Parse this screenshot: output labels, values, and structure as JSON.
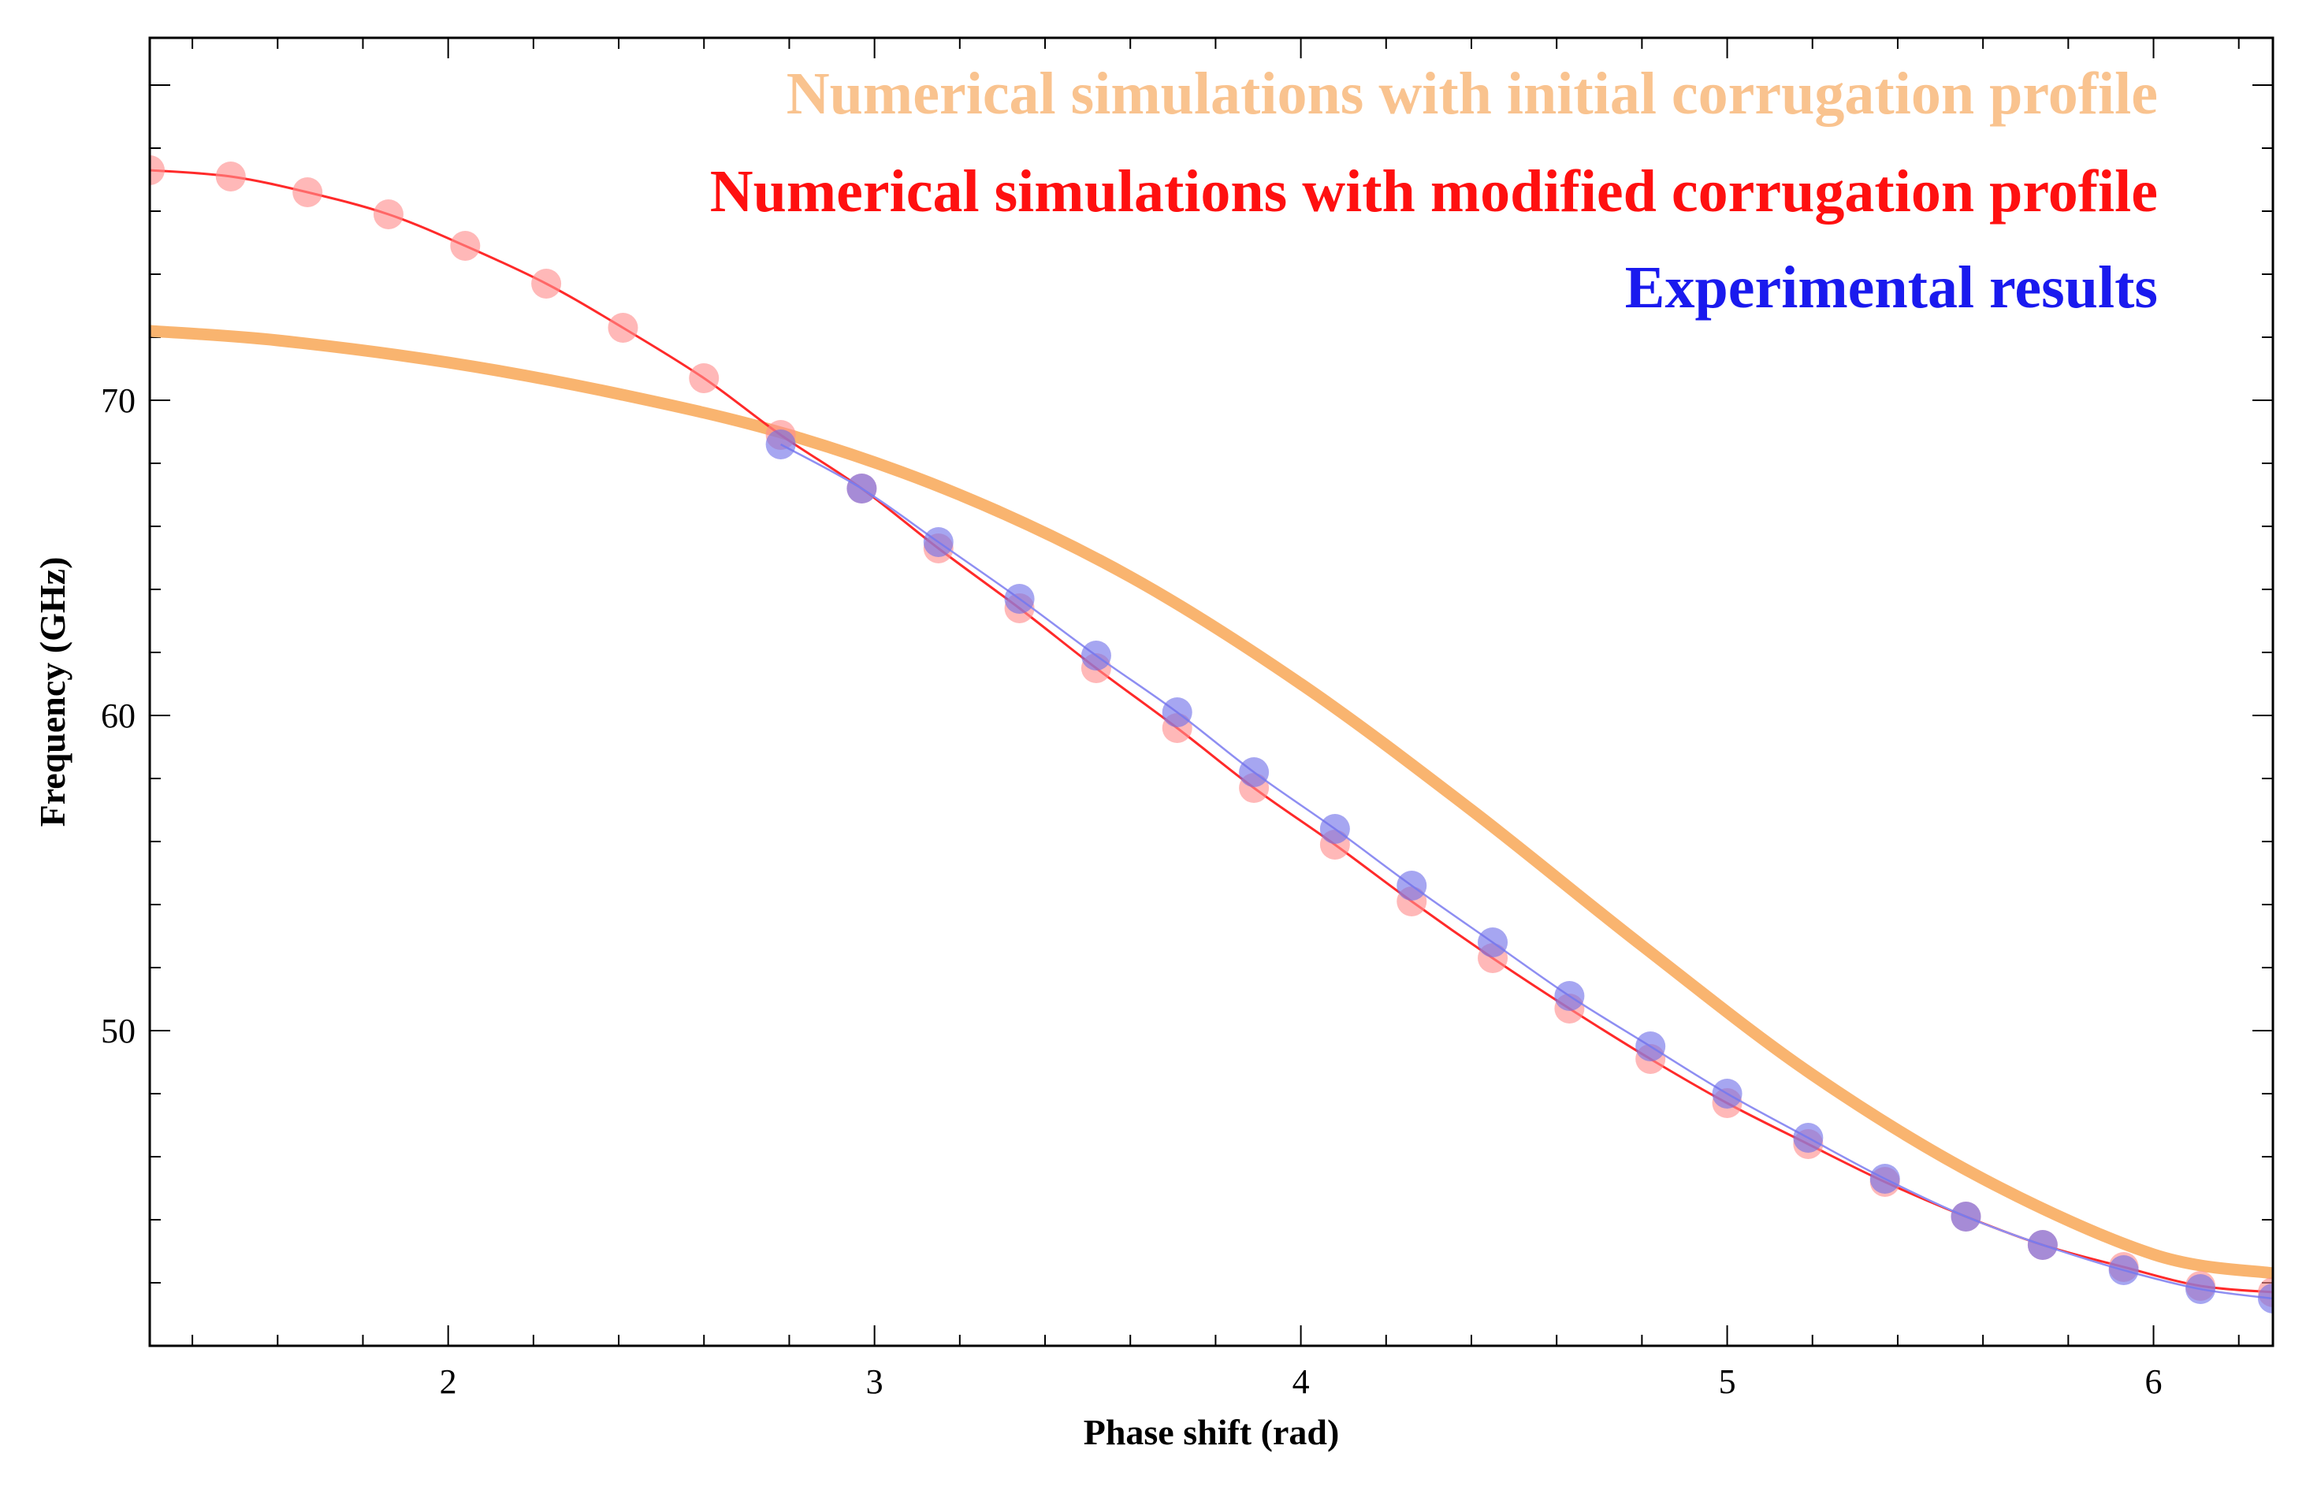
{
  "chart_data": {
    "type": "line",
    "title": "",
    "xlabel": "Phase shift (rad)",
    "ylabel": "Frequency (GHz)",
    "xlim": [
      1.3,
      6.28
    ],
    "ylim": [
      40,
      81.5
    ],
    "x_ticks": [
      2,
      3,
      4,
      5,
      6
    ],
    "x_tick_labels": [
      "2",
      "3",
      "4",
      "5",
      "6"
    ],
    "y_ticks": [
      50,
      60,
      70
    ],
    "y_tick_labels": [
      "50",
      "60",
      "70"
    ],
    "grid": false,
    "legend_position": "top-right",
    "series": [
      {
        "name": "Numerical simulations with initial corrugation profile",
        "color": "#f9b46f",
        "style": "thick-line",
        "x": [
          1.3,
          1.6,
          2.0,
          2.4,
          2.8,
          3.2,
          3.6,
          4.0,
          4.4,
          4.8,
          5.2,
          5.6,
          6.0,
          6.28
        ],
        "y": [
          72.2,
          71.9,
          71.2,
          70.2,
          68.9,
          67.0,
          64.4,
          61.0,
          57.0,
          52.7,
          48.6,
          45.3,
          42.9,
          42.3
        ]
      },
      {
        "name": "Numerical simulations with modified corrugation profile",
        "color": "#ff2a2a",
        "marker_color": "#ff8c8c",
        "style": "line-with-markers",
        "x": [
          1.3,
          1.49,
          1.67,
          1.86,
          2.04,
          2.23,
          2.41,
          2.6,
          2.78,
          2.97,
          3.15,
          3.34,
          3.52,
          3.71,
          3.89,
          4.08,
          4.26,
          4.45,
          4.63,
          4.82,
          5.0,
          5.19,
          5.37,
          5.56,
          5.74,
          5.93,
          6.11,
          6.28
        ],
        "y": [
          77.3,
          77.1,
          76.6,
          75.9,
          74.9,
          73.7,
          72.3,
          70.7,
          68.9,
          67.2,
          65.3,
          63.4,
          61.5,
          59.6,
          57.7,
          55.9,
          54.1,
          52.3,
          50.7,
          49.1,
          47.7,
          46.4,
          45.2,
          44.1,
          43.2,
          42.5,
          41.9,
          41.7
        ]
      },
      {
        "name": "Experimental results",
        "color": "#8e8ef2",
        "marker_color": "#6f6fe8",
        "style": "line-with-markers",
        "x": [
          2.78,
          2.97,
          3.15,
          3.34,
          3.52,
          3.71,
          3.89,
          4.08,
          4.26,
          4.45,
          4.63,
          4.82,
          5.0,
          5.19,
          5.37,
          5.56,
          5.74,
          5.93,
          6.11,
          6.28
        ],
        "y": [
          68.6,
          67.2,
          65.5,
          63.7,
          61.9,
          60.1,
          58.2,
          56.4,
          54.6,
          52.8,
          51.1,
          49.5,
          48.0,
          46.6,
          45.3,
          44.1,
          43.2,
          42.4,
          41.8,
          41.5
        ]
      }
    ]
  }
}
